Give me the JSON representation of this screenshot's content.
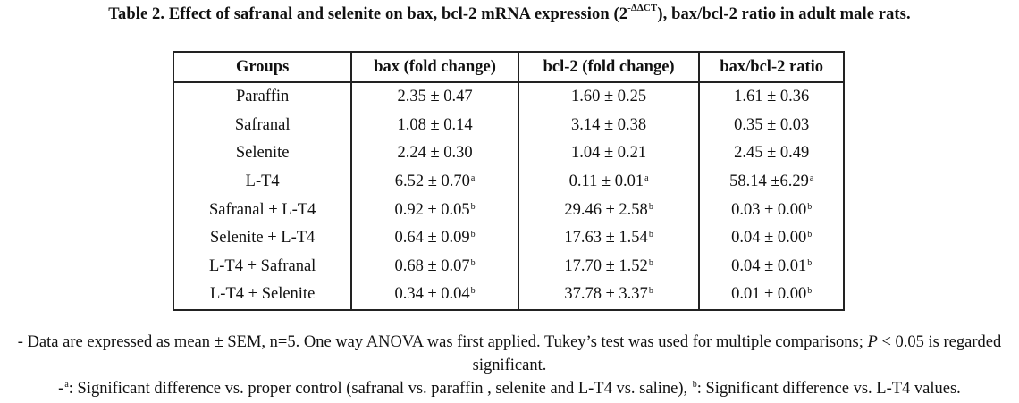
{
  "caption": {
    "before": "Table 2. Effect of  safranal and selenite on bax, bcl-2 mRNA expression (2",
    "exponent": "-ΔΔCT",
    "after": "), bax/bcl-2 ratio in adult male rats."
  },
  "table": {
    "headers": [
      "Groups",
      "bax (fold change)",
      "bcl-2 (fold change)",
      "bax/bcl-2 ratio"
    ],
    "rows": [
      [
        {
          "v": "Paraffin"
        },
        {
          "v": "2.35 ± 0.47"
        },
        {
          "v": "1.60 ± 0.25"
        },
        {
          "v": "1.61 ± 0.36"
        }
      ],
      [
        {
          "v": "Safranal"
        },
        {
          "v": "1.08 ± 0.14"
        },
        {
          "v": "3.14 ± 0.38"
        },
        {
          "v": "0.35 ± 0.03"
        }
      ],
      [
        {
          "v": "Selenite"
        },
        {
          "v": "2.24 ± 0.30"
        },
        {
          "v": "1.04 ± 0.21"
        },
        {
          "v": "2.45 ± 0.49"
        }
      ],
      [
        {
          "v": "L-T4"
        },
        {
          "v": "6.52 ± 0.70",
          "s": "a"
        },
        {
          "v": "0.11 ± 0.01",
          "s": "a"
        },
        {
          "v": "58.14 ±6.29",
          "s": "a"
        }
      ],
      [
        {
          "v": "Safranal  + L-T4"
        },
        {
          "v": "0.92 ± 0.05",
          "s": "b"
        },
        {
          "v": "29.46 ± 2.58",
          "s": "b"
        },
        {
          "v": "0.03 ± 0.00",
          "s": "b"
        }
      ],
      [
        {
          "v": "Selenite + L-T4"
        },
        {
          "v": "0.64 ± 0.09",
          "s": "b"
        },
        {
          "v": "17.63 ± 1.54",
          "s": "b"
        },
        {
          "v": "0.04 ± 0.00",
          "s": "b"
        }
      ],
      [
        {
          "v": "L-T4 + Safranal"
        },
        {
          "v": "0.68 ± 0.07",
          "s": "b"
        },
        {
          "v": "17.70 ± 1.52",
          "s": "b"
        },
        {
          "v": "0.04 ± 0.01",
          "s": "b"
        }
      ],
      [
        {
          "v": "L-T4 + Selenite"
        },
        {
          "v": "0.34 ± 0.04",
          "s": "b"
        },
        {
          "v": "37.78 ± 3.37",
          "s": "b"
        },
        {
          "v": "0.01 ± 0.00",
          "s": "b"
        }
      ]
    ]
  },
  "notes": {
    "line1_before": "- Data are expressed as mean ± SEM, n=5. One way ANOVA was first applied. Tukey’s test was used for multiple comparisons; ",
    "line1_italic": "P",
    "line1_after": " < 0.05 is regarded significant.",
    "line2_prefix": "-",
    "line2_sup_a": "a",
    "line2_mid": ": Significant difference vs. proper control  (safranal vs. paraffin , selenite and L-T4 vs. saline), ",
    "line2_sup_b": "b",
    "line2_end": ": Significant difference vs. L-T4 values."
  }
}
